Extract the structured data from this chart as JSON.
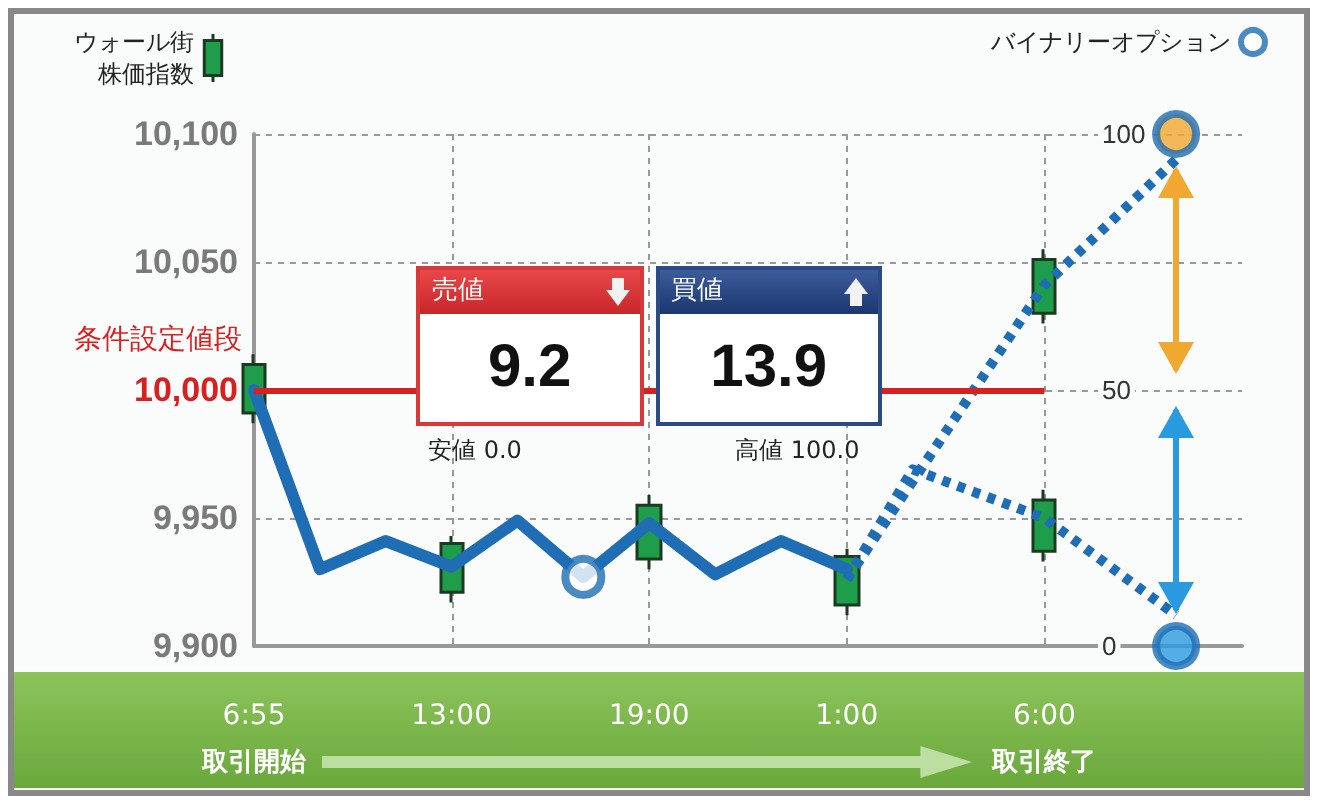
{
  "chart_data": {
    "type": "line",
    "legend": "top",
    "grid": true,
    "marker": "none",
    "categories": [
      "6:55",
      null,
      null,
      "13:00",
      null,
      null,
      "19:00",
      null,
      null,
      "1:00",
      null,
      null,
      "6:00",
      null,
      null,
      null
    ],
    "ylim": [
      9900,
      10100
    ],
    "yticks": [
      {
        "value": 9900,
        "label": "9,900"
      },
      {
        "value": 9950,
        "label": "9,950"
      },
      {
        "value": 10000,
        "label": "10,000"
      },
      {
        "value": 10050,
        "label": "10,050"
      },
      {
        "value": 10100,
        "label": "10,100"
      }
    ],
    "y2lim": [
      0,
      100
    ],
    "y2ticks": [
      0,
      50,
      100
    ],
    "series": [
      {
        "name": "ウォール街株価指数",
        "type": "candlestick",
        "color": "#1e9e4a",
        "ohlc": [
          [
            9991,
            10014,
            9987,
            10010
          ],
          null,
          null,
          [
            9921,
            9943,
            9917,
            9940
          ],
          null,
          null,
          [
            9934,
            9959,
            9930,
            9955
          ],
          null,
          null,
          [
            9916,
            9938,
            9912,
            9935
          ],
          null,
          null,
          [
            10030,
            10055,
            10026,
            10051
          ],
          null,
          null,
          null
        ]
      },
      {
        "type": "candlestick",
        "color": "#1e9e4a",
        "ohlc": [
          null,
          null,
          null,
          null,
          null,
          null,
          null,
          null,
          null,
          null,
          null,
          null,
          [
            9937,
            9961,
            9933,
            9957
          ],
          null,
          null,
          null
        ]
      },
      {
        "color": "#1f6db5",
        "line_style": "solid",
        "values": [
          10000,
          9930,
          9941,
          9931,
          9949,
          9927,
          9948,
          9928,
          9941,
          9930,
          null,
          null,
          null,
          null,
          null,
          null
        ]
      },
      {
        "color": "#1f6db5",
        "line_style": "dotted",
        "values": [
          null,
          null,
          null,
          null,
          null,
          null,
          null,
          null,
          null,
          9926,
          null,
          null,
          10041,
          null,
          10090,
          null
        ]
      },
      {
        "color": "#1f6db5",
        "line_style": "dotted",
        "values": [
          null,
          null,
          null,
          null,
          null,
          null,
          null,
          null,
          null,
          9926,
          9969,
          null,
          9950,
          null,
          9912,
          null
        ]
      },
      {
        "name": "バイナリーオプション",
        "type": "scatter",
        "marker": "circle",
        "color": "#1f6db5",
        "values": [
          null,
          null,
          null,
          null,
          null,
          9927,
          null,
          null,
          null,
          null,
          null,
          null,
          null,
          null,
          null,
          null
        ]
      },
      {
        "type": "scatter",
        "marker": "circle",
        "axis": "y2",
        "color": "#f0a830",
        "values": [
          null,
          null,
          null,
          null,
          null,
          null,
          null,
          null,
          null,
          null,
          null,
          null,
          null,
          null,
          100,
          null
        ]
      },
      {
        "type": "scatter",
        "marker": "circle",
        "axis": "y2",
        "color": "#2a9ae0",
        "values": [
          null,
          null,
          null,
          null,
          null,
          null,
          null,
          null,
          null,
          null,
          null,
          null,
          null,
          null,
          0,
          null
        ]
      }
    ],
    "ref_lines": [
      {
        "axis": "y",
        "value": 10000,
        "label": "条件設定値段",
        "color": "#d92020"
      }
    ],
    "annotations": [
      "売値",
      "9.2",
      "買値",
      "13.9",
      "安値 0.0",
      "高値 100.0",
      "取引開始",
      "取引終了"
    ]
  }
}
